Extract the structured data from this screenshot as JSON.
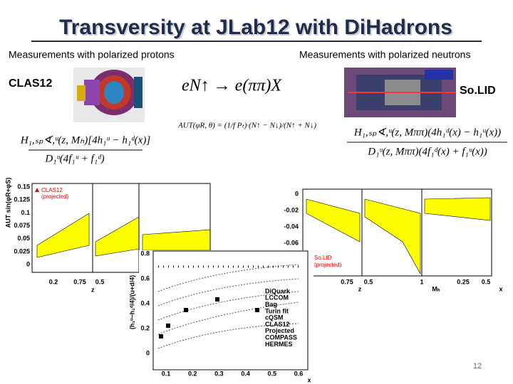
{
  "title": "Transversity at JLab12 with DiHadrons",
  "left": {
    "heading": "Measurements with polarized protons",
    "experiment": "CLAS12",
    "reaction": "eN↑ → e(ππ)X",
    "asymmetry": "AUT(φR, θ) = (1/f Pₜ)·(N↑ − N↓)/(N↑ + N↓)",
    "numerator": "H₁,ₛₚ∢,ᵘ(z, Mₕ)[4h₁ᵘ − h₁ᵈ(x)]",
    "denominator": "D₁ᵘ(4f₁ᵘ + f₁ᵈ)"
  },
  "right": {
    "heading": "Measurements with polarized neutrons",
    "experiment": "So.LID",
    "numerator": "H₁,ₛₚ∢,ᵘ(z, Mππ)(4h₁ᵈ(x) − h₁ᵘ(x))",
    "denominator": "D₁ᵘ(z, Mππ)(4f₁ᵈ(x) + f₁ᵘ(x))"
  },
  "plots": {
    "clas12": {
      "y_label": "AUT sin(φR+φS)",
      "y_ticks": [
        "0.15",
        "0.125",
        "0.1",
        "0.075",
        "0.05",
        "0.025",
        "0"
      ],
      "x_ticks": [
        "0.2",
        "0.75",
        "0.5"
      ],
      "x_label": "z",
      "legend": [
        "CLAS12",
        "(projected)"
      ]
    },
    "models": {
      "y_label": "(h₁ᵘ−h₁ᵈ/4)/(u+d/4)",
      "y_ticks": [
        "0",
        "0.2",
        "0.4",
        "0.6",
        "0.8"
      ],
      "x_ticks": [
        "0.1",
        "0.2",
        "0.3",
        "0.4",
        "0.5",
        "0.6"
      ],
      "x_label": "x",
      "legend": [
        "DiQuark",
        "LCCOM",
        "Bag",
        "Turin fit",
        "cQSM",
        "CLAS12",
        "Projected",
        "COMPASS",
        "HERMES"
      ]
    },
    "solid": {
      "y_ticks": [
        "0",
        "-0.02",
        "-0.04",
        "-0.06"
      ],
      "x_ticks": [
        "0.75",
        "0.5",
        "1",
        "0.25",
        "0.5"
      ],
      "x_labels": [
        "z",
        "Mₕ",
        "x"
      ],
      "legend": [
        "So.LID",
        "(projected)"
      ]
    }
  },
  "page_number": "12"
}
